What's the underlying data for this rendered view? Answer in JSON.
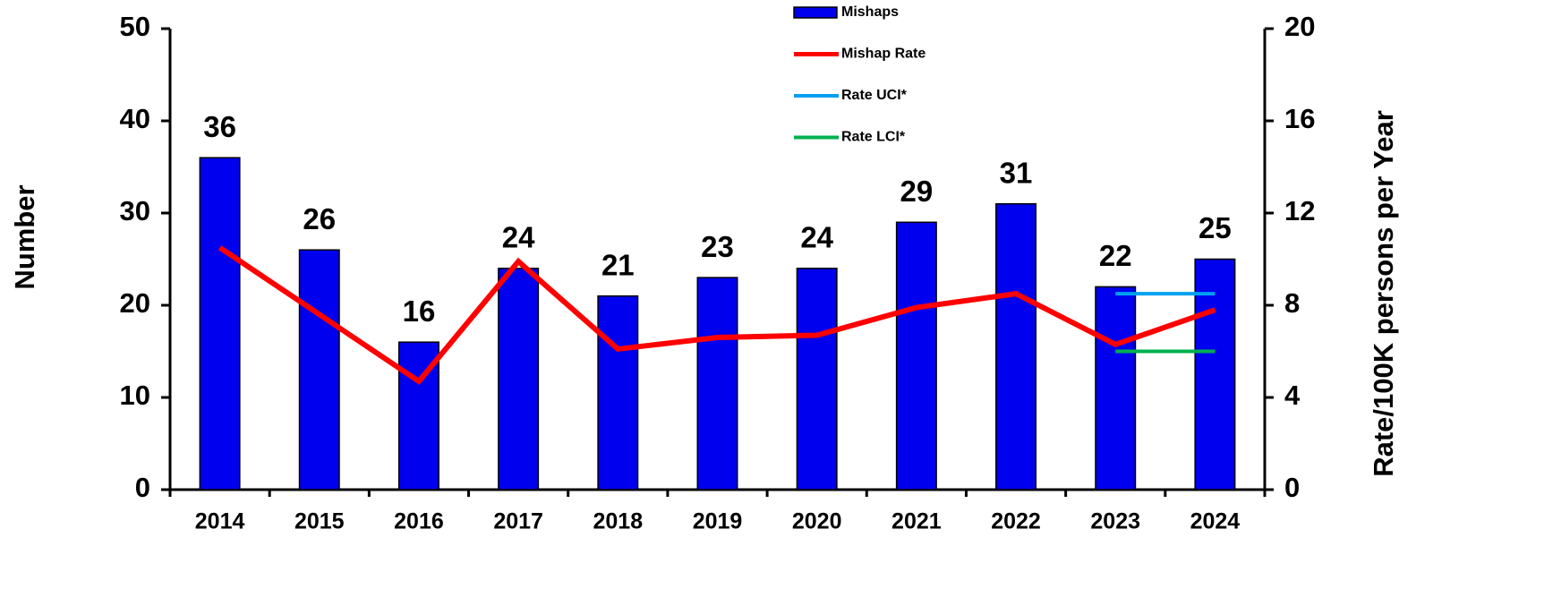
{
  "chart_data": {
    "type": "bar",
    "categories": [
      "2014",
      "2015",
      "2016",
      "2017",
      "2018",
      "2019",
      "2020",
      "2021",
      "2022",
      "2023",
      "2024"
    ],
    "series": [
      {
        "name": "Mishaps",
        "type": "bar",
        "color": "#0000ee",
        "axis": "y",
        "values": [
          36,
          26,
          16,
          24,
          21,
          23,
          24,
          29,
          31,
          22,
          25
        ]
      },
      {
        "name": "Mishap Rate",
        "type": "line",
        "color": "#ff0000",
        "axis": "y2",
        "values": [
          10.5,
          7.6,
          4.7,
          9.9,
          6.1,
          6.6,
          6.7,
          7.9,
          8.5,
          6.3,
          7.8
        ]
      },
      {
        "name": "Rate UCI*",
        "type": "line",
        "color": "#00a0f0",
        "axis": "y2",
        "values": [
          null,
          null,
          null,
          null,
          null,
          null,
          null,
          null,
          null,
          8.5,
          8.5
        ]
      },
      {
        "name": "Rate LCI*",
        "type": "line",
        "color": "#00b050",
        "axis": "y2",
        "values": [
          null,
          null,
          null,
          null,
          null,
          null,
          null,
          null,
          null,
          6.0,
          6.0
        ]
      }
    ],
    "ylabel": "Number",
    "y2label": "Rate/100K persons per Year",
    "ylim": [
      0,
      50
    ],
    "yticks": [
      0,
      10,
      20,
      30,
      40,
      50
    ],
    "y2lim": [
      0,
      20
    ],
    "y2ticks": [
      0,
      4,
      8,
      12,
      16,
      20
    ],
    "grid": false,
    "legend": "top"
  }
}
